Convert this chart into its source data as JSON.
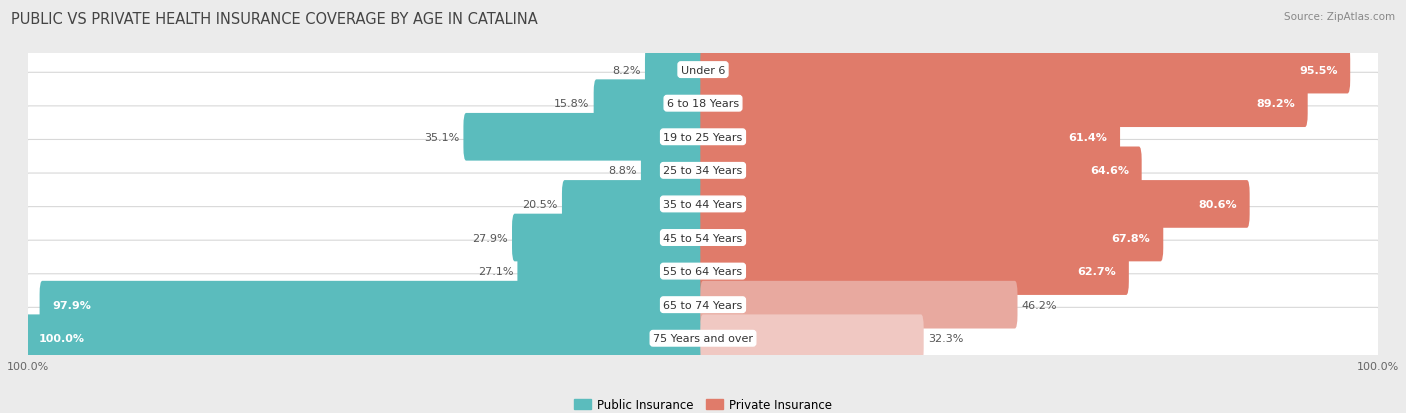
{
  "title": "PUBLIC VS PRIVATE HEALTH INSURANCE COVERAGE BY AGE IN CATALINA",
  "source": "Source: ZipAtlas.com",
  "categories": [
    "Under 6",
    "6 to 18 Years",
    "19 to 25 Years",
    "25 to 34 Years",
    "35 to 44 Years",
    "45 to 54 Years",
    "55 to 64 Years",
    "65 to 74 Years",
    "75 Years and over"
  ],
  "public_values": [
    8.2,
    15.8,
    35.1,
    8.8,
    20.5,
    27.9,
    27.1,
    97.9,
    100.0
  ],
  "private_values": [
    95.5,
    89.2,
    61.4,
    64.6,
    80.6,
    67.8,
    62.7,
    46.2,
    32.3
  ],
  "public_color": "#5bbcbd",
  "private_colors": [
    "#e07b6a",
    "#e07b6a",
    "#e07b6a",
    "#e07b6a",
    "#e07b6a",
    "#e07b6a",
    "#e07b6a",
    "#e8a99f",
    "#f0c8c2"
  ],
  "bg_color": "#ebebeb",
  "row_bg": "#f2f2f2",
  "row_border": "#d8d8d8",
  "max_val": 100.0,
  "title_fontsize": 10.5,
  "label_fontsize": 8.5,
  "value_fontsize": 8.0,
  "tick_fontsize": 8.0,
  "legend_fontsize": 8.5,
  "private_label_threshold": 50,
  "public_label_threshold": 50
}
